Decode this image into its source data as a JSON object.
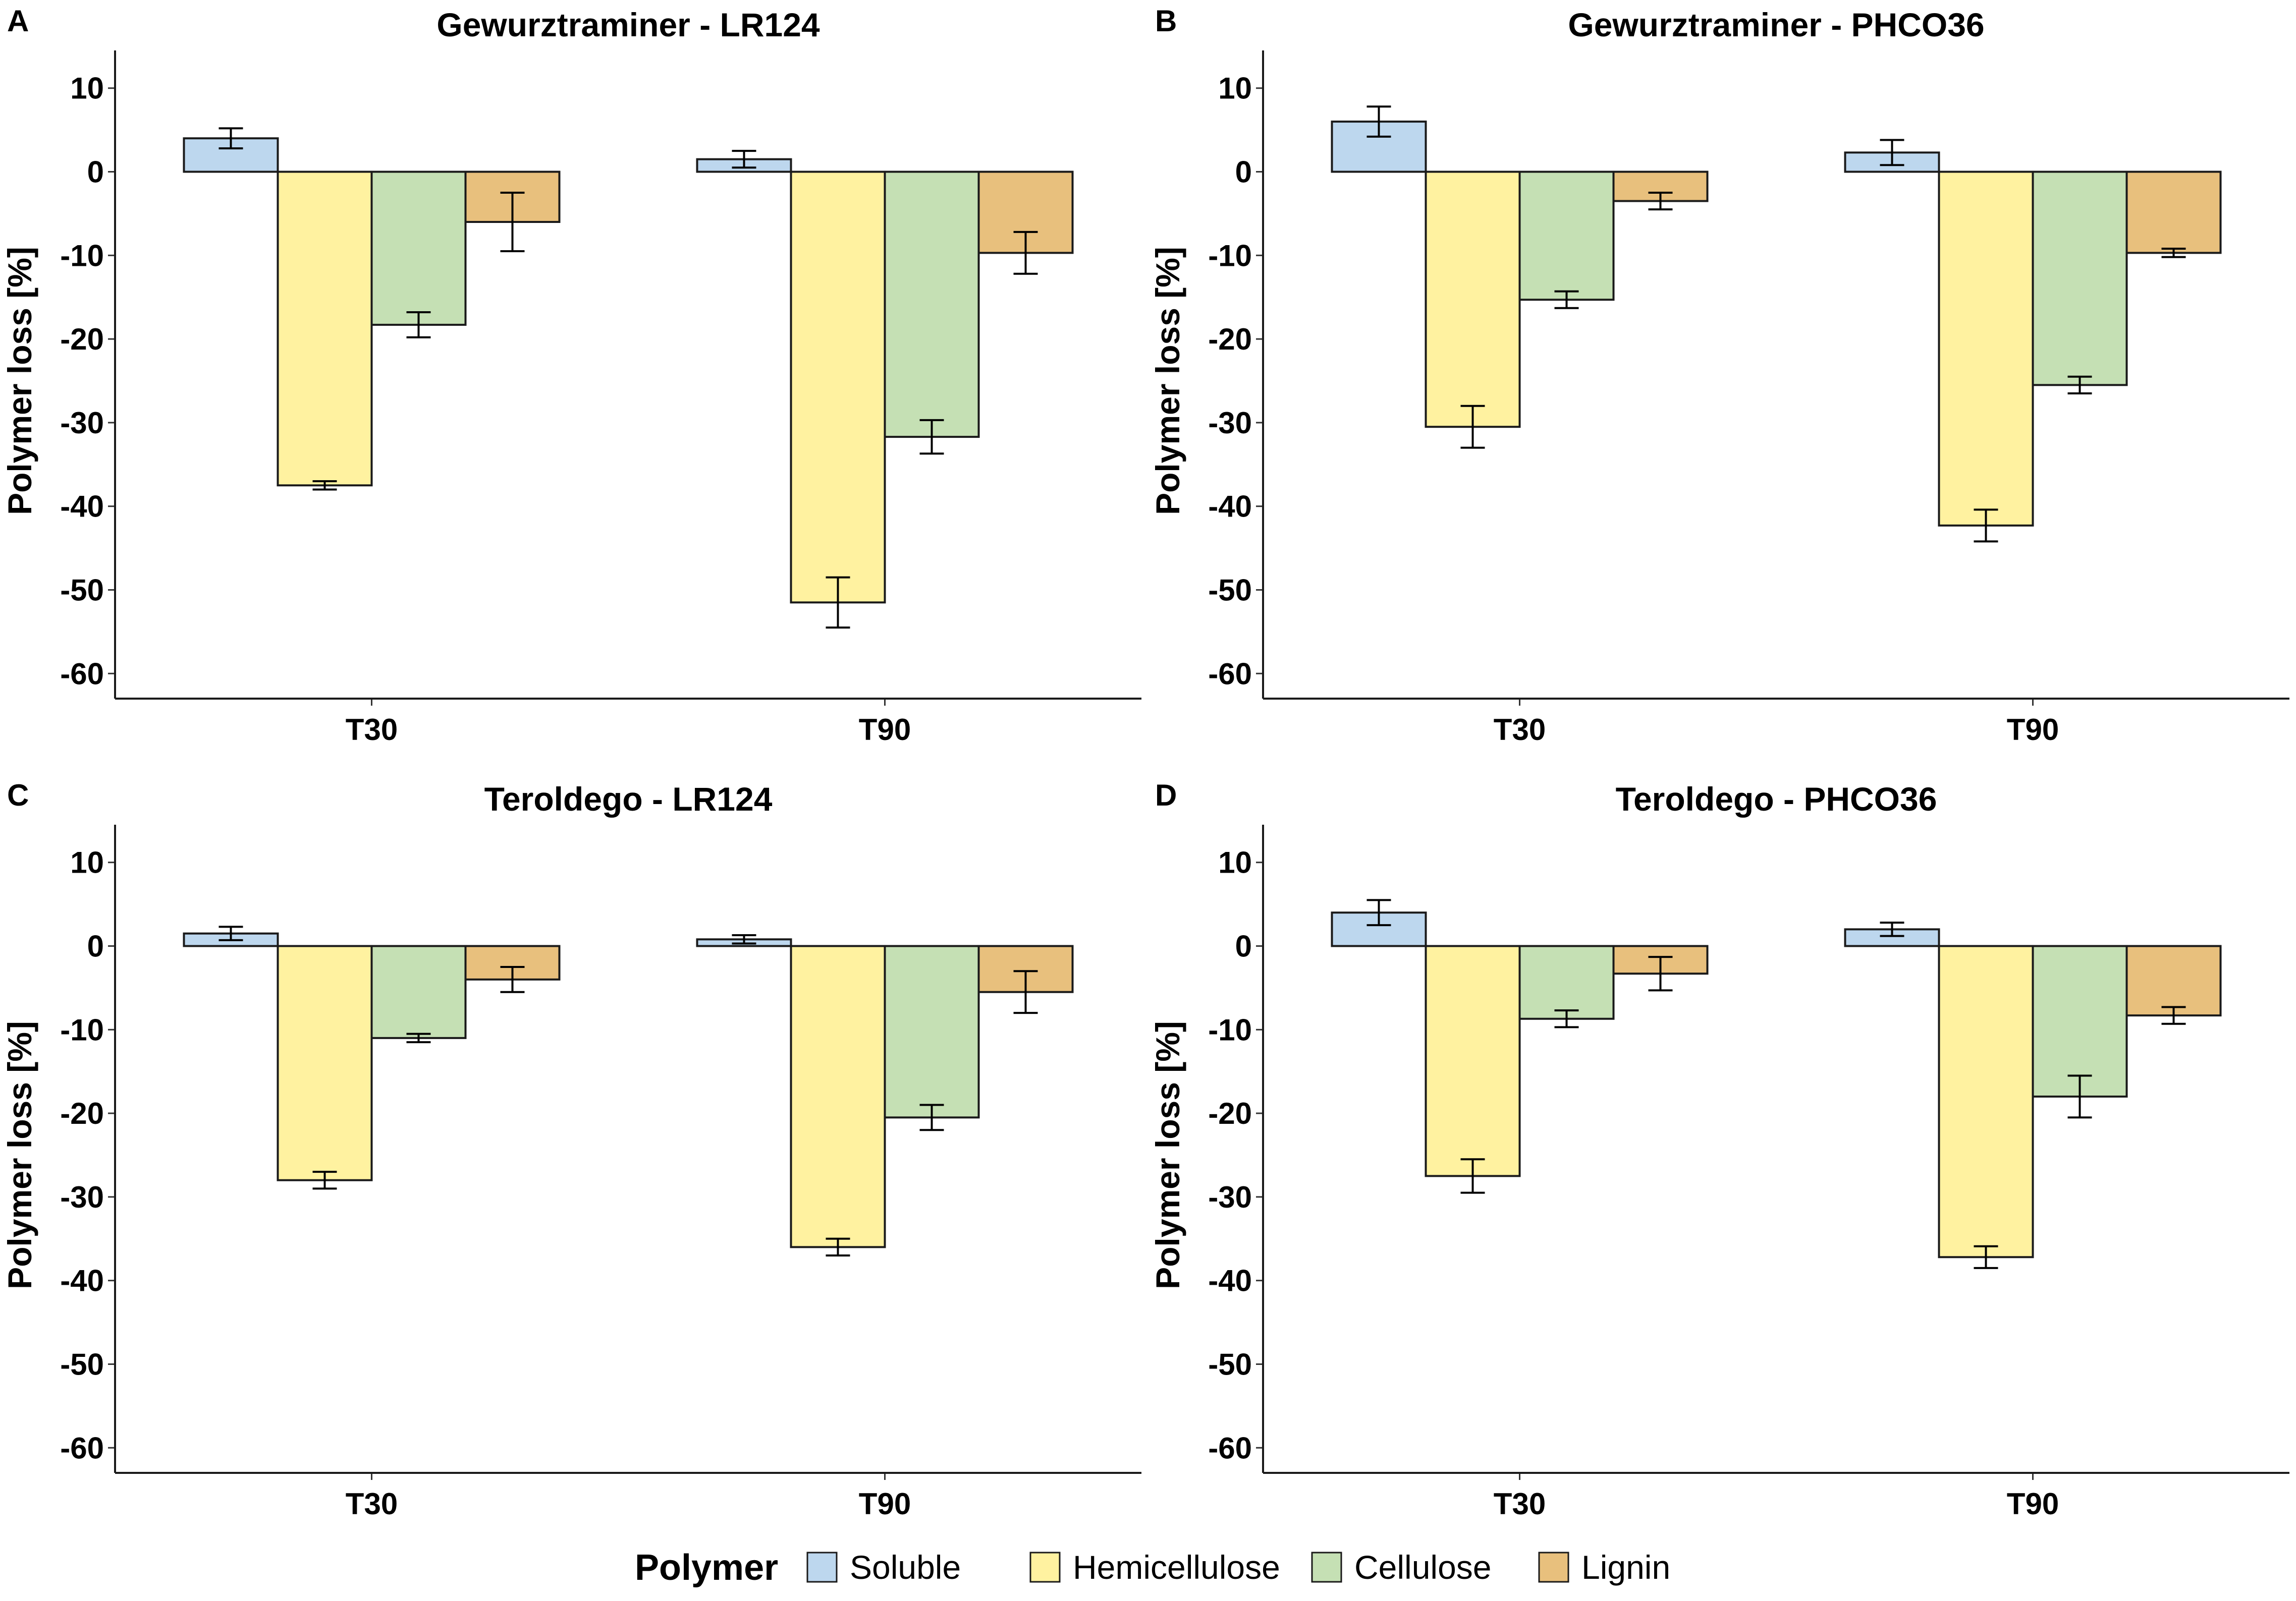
{
  "legend": {
    "title": "Polymer",
    "items": [
      {
        "label": "Soluble",
        "color": "#bdd7ee"
      },
      {
        "label": "Hemicellulose",
        "color": "#fff2a0"
      },
      {
        "label": "Cellulose",
        "color": "#c5e0b4"
      },
      {
        "label": "Lignin",
        "color": "#e8c07d"
      }
    ]
  },
  "chart_data": [
    {
      "type": "bar",
      "panel": "A",
      "title": "Gewurztraminer - LR124",
      "xlabel": "",
      "ylabel": "Polymer loss [%]",
      "ylim": [
        -63,
        13
      ],
      "yticks": [
        10,
        0,
        -10,
        -20,
        -30,
        -40,
        -50,
        -60
      ],
      "categories": [
        "T30",
        "T90"
      ],
      "series": [
        {
          "name": "Soluble",
          "values": [
            4.0,
            1.5
          ],
          "errors": [
            1.2,
            1.0
          ]
        },
        {
          "name": "Hemicellulose",
          "values": [
            -37.5,
            -51.5
          ],
          "errors": [
            0.5,
            3.0
          ]
        },
        {
          "name": "Cellulose",
          "values": [
            -18.3,
            -31.7
          ],
          "errors": [
            1.5,
            2.0
          ]
        },
        {
          "name": "Lignin",
          "values": [
            -6.0,
            -9.7
          ],
          "errors": [
            3.5,
            2.5
          ]
        }
      ]
    },
    {
      "type": "bar",
      "panel": "B",
      "title": "Gewurztraminer - PHCO36",
      "xlabel": "",
      "ylabel": "Polymer loss [%]",
      "ylim": [
        -63,
        13
      ],
      "yticks": [
        10,
        0,
        -10,
        -20,
        -30,
        -40,
        -50,
        -60
      ],
      "categories": [
        "T30",
        "T90"
      ],
      "series": [
        {
          "name": "Soluble",
          "values": [
            6.0,
            2.3
          ],
          "errors": [
            1.8,
            1.5
          ]
        },
        {
          "name": "Hemicellulose",
          "values": [
            -30.5,
            -42.3
          ],
          "errors": [
            2.5,
            1.9
          ]
        },
        {
          "name": "Cellulose",
          "values": [
            -15.3,
            -25.5
          ],
          "errors": [
            1.0,
            1.0
          ]
        },
        {
          "name": "Lignin",
          "values": [
            -3.5,
            -9.7
          ],
          "errors": [
            1.0,
            0.5
          ]
        }
      ]
    },
    {
      "type": "bar",
      "panel": "C",
      "title": "Teroldego - LR124",
      "xlabel": "",
      "ylabel": "Polymer loss [%]",
      "ylim": [
        -63,
        13
      ],
      "yticks": [
        10,
        0,
        -10,
        -20,
        -30,
        -40,
        -50,
        -60
      ],
      "categories": [
        "T30",
        "T90"
      ],
      "series": [
        {
          "name": "Soluble",
          "values": [
            1.5,
            0.8
          ],
          "errors": [
            0.8,
            0.5
          ]
        },
        {
          "name": "Hemicellulose",
          "values": [
            -28.0,
            -36.0
          ],
          "errors": [
            1.0,
            1.0
          ]
        },
        {
          "name": "Cellulose",
          "values": [
            -11.0,
            -20.5
          ],
          "errors": [
            0.5,
            1.5
          ]
        },
        {
          "name": "Lignin",
          "values": [
            -4.0,
            -5.5
          ],
          "errors": [
            1.5,
            2.5
          ]
        }
      ]
    },
    {
      "type": "bar",
      "panel": "D",
      "title": "Teroldego - PHCO36",
      "xlabel": "",
      "ylabel": "Polymer loss [%]",
      "ylim": [
        -63,
        13
      ],
      "yticks": [
        10,
        0,
        -10,
        -20,
        -30,
        -40,
        -50,
        -60
      ],
      "categories": [
        "T30",
        "T90"
      ],
      "series": [
        {
          "name": "Soluble",
          "values": [
            4.0,
            2.0
          ],
          "errors": [
            1.5,
            0.8
          ]
        },
        {
          "name": "Hemicellulose",
          "values": [
            -27.5,
            -37.2
          ],
          "errors": [
            2.0,
            1.3
          ]
        },
        {
          "name": "Cellulose",
          "values": [
            -8.7,
            -18.0
          ],
          "errors": [
            1.0,
            2.5
          ]
        },
        {
          "name": "Lignin",
          "values": [
            -3.3,
            -8.3
          ],
          "errors": [
            2.0,
            1.0
          ]
        }
      ]
    }
  ]
}
